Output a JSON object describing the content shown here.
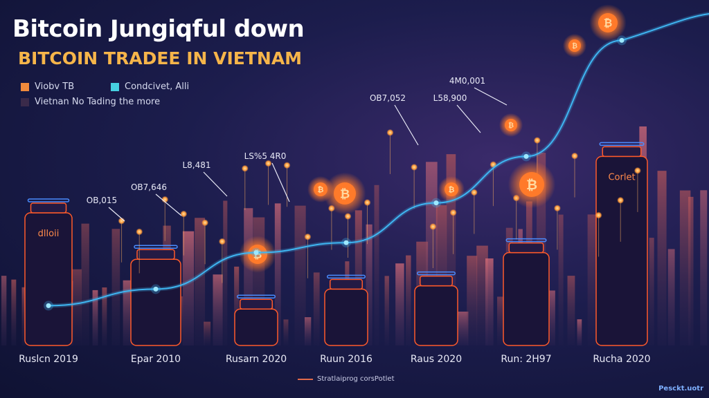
{
  "title": "Bitcoin Jungiqful down",
  "subtitle": "BITCOIN TRADEE IN VIETNAM",
  "legend": [
    {
      "label": "Viobv TB",
      "color": "#f08a3c"
    },
    {
      "label": "Condcivet, Alli",
      "color": "#46d0e0"
    },
    {
      "label": "Vietnan No Tading the more",
      "color": "#3a2a4a"
    }
  ],
  "colors": {
    "line": "#3fb6f2",
    "glow_orange": "#ff7a2a",
    "outline_orange": "#ff5a2a",
    "outline_blue": "#4a8cff",
    "bg": "#151845"
  },
  "chart_data": {
    "type": "line",
    "title": "Bitcoin Jungiqful down",
    "subtitle": "BITCOIN TRADEE IN VIETNAM",
    "categories": [
      "Ruslcn 2019",
      "Epar 2010",
      "Rusarn 2020",
      "Ruun 2016",
      "Raus 2020",
      "Run: 2H97",
      "Rucha 2020"
    ],
    "annotations": [
      "OB,015",
      "OB7,646",
      "L8,481",
      "LS%5 4R0",
      "OB7,052",
      "L58,900",
      "4M0,001"
    ],
    "series": [
      {
        "values": [
          12,
          17,
          28,
          31,
          43,
          57,
          92
        ]
      }
    ],
    "bar_values": [
      40,
      26,
      11,
      17,
      18,
      28,
      57
    ],
    "bar_labels": [
      "dlloii",
      "",
      "",
      "",
      "",
      "",
      "Corlet"
    ],
    "ylim": [
      0,
      100
    ],
    "grid": false,
    "legend_position": "top-left"
  },
  "footer_label": "Stratlaiprog corsPotlet",
  "watermark": "Pesckt.uotr"
}
